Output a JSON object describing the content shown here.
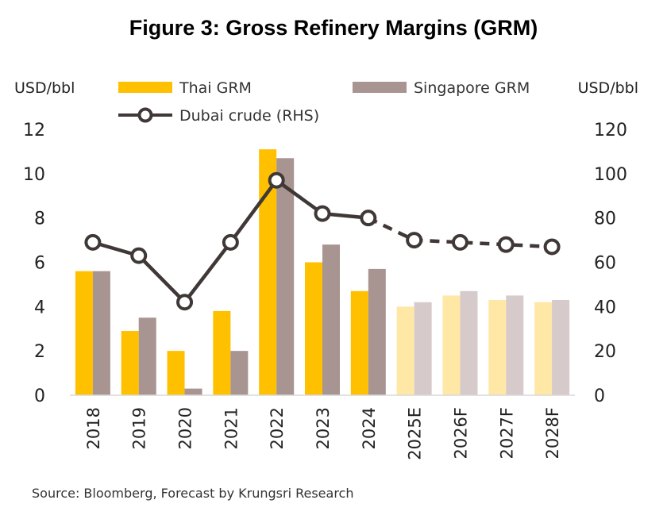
{
  "chart_data": {
    "type": "bar",
    "title": "Figure 3: Gross Refinery Margins  (GRM)",
    "ylabel_left": "USD/bbl",
    "ylabel_right": "USD/bbl",
    "ylim_left": [
      0,
      12
    ],
    "ylim_right": [
      0,
      120
    ],
    "yticks_left": [
      "0",
      "2",
      "4",
      "6",
      "8",
      "10",
      "12"
    ],
    "yticks_right": [
      "0",
      "20",
      "40",
      "60",
      "80",
      "100",
      "120"
    ],
    "categories": [
      "2018",
      "2019",
      "2020",
      "2021",
      "2022",
      "2023",
      "2024",
      "2025E",
      "2026F",
      "2027F",
      "2028F"
    ],
    "series": [
      {
        "name": "Thai GRM",
        "type": "bar",
        "axis": "left",
        "color": "#FFC000",
        "forecast_color": "#FFE8A6",
        "values": [
          5.6,
          2.9,
          2.0,
          3.8,
          11.1,
          6.0,
          4.7,
          4.0,
          4.5,
          4.3,
          4.2
        ]
      },
      {
        "name": "Singapore GRM",
        "type": "bar",
        "axis": "left",
        "color": "#A89490",
        "forecast_color": "#D7CACA",
        "values": [
          5.6,
          3.5,
          0.3,
          2.0,
          10.7,
          6.8,
          5.7,
          4.2,
          4.7,
          4.5,
          4.3
        ]
      },
      {
        "name": "Dubai crude (RHS)",
        "type": "line",
        "axis": "right",
        "color": "#3F3836",
        "values": [
          69,
          63,
          42,
          69,
          97,
          82,
          80,
          70,
          69,
          68,
          67
        ]
      }
    ],
    "forecast_start_index": 7,
    "legend_position": "top"
  },
  "source": "Source: Bloomberg, Forecast by Krungsri Research"
}
